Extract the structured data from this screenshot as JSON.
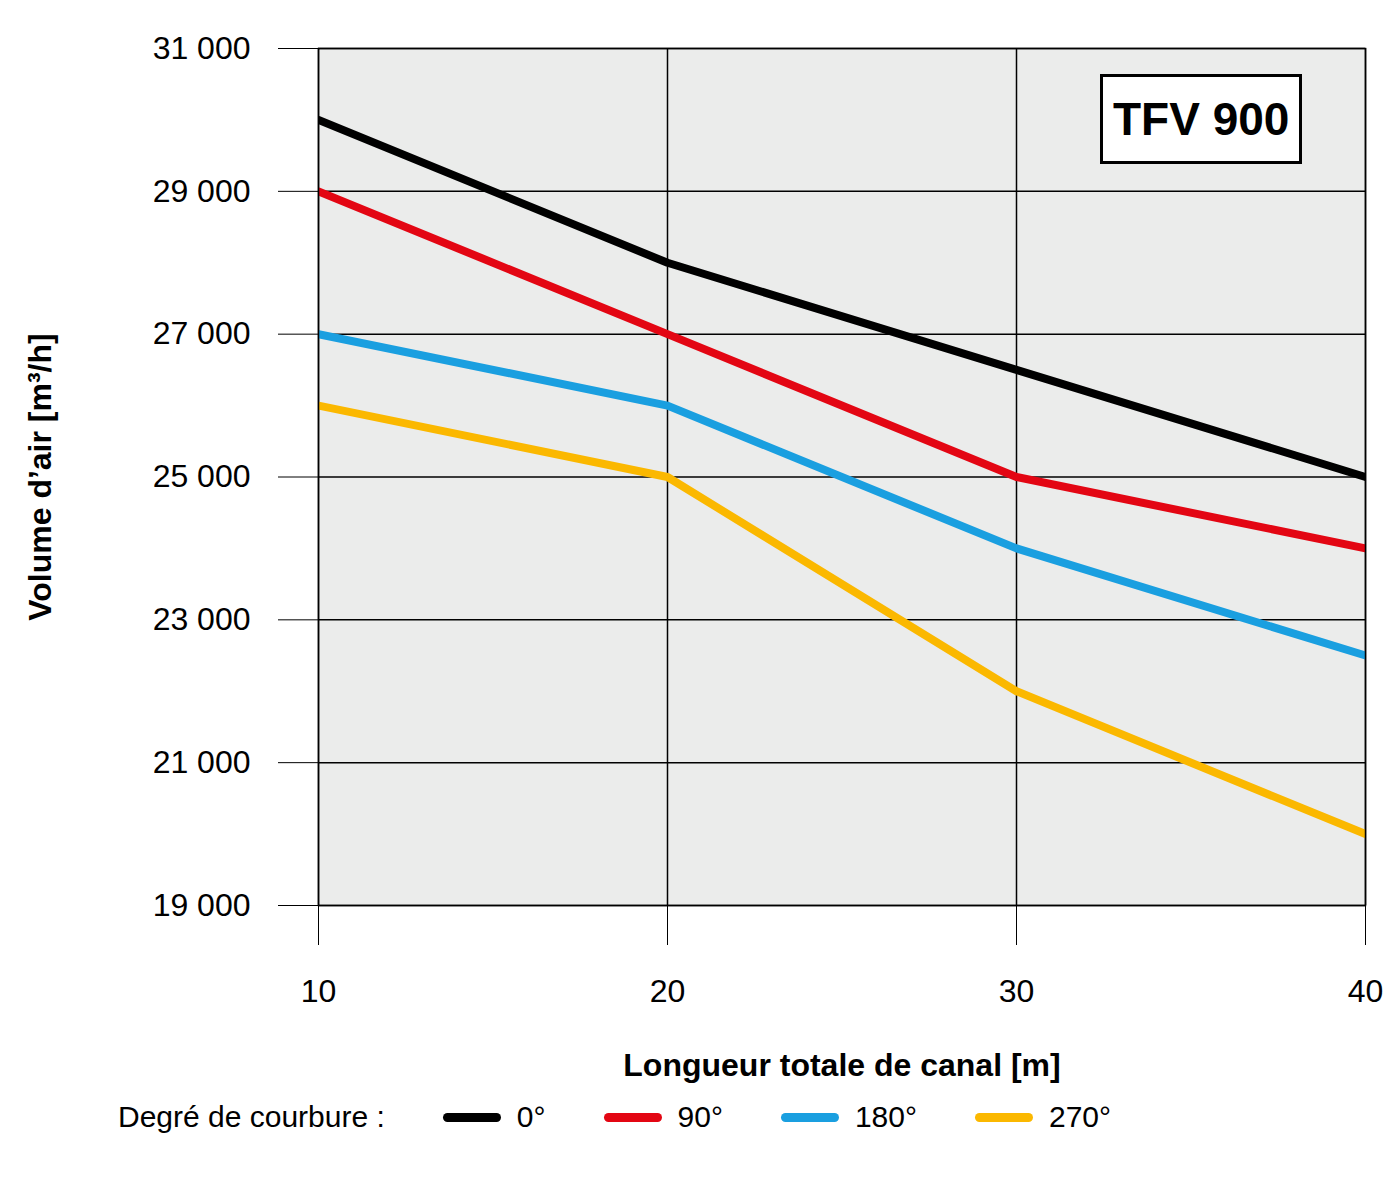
{
  "chart_data": {
    "type": "line",
    "title": "TFV 900",
    "x_label": "Longueur totale de canal [m]",
    "y_label": "Volume d’air [m³/h]",
    "legend_title": "Degré de courbure :",
    "x": [
      10,
      20,
      30,
      40
    ],
    "series": [
      {
        "name": "0°",
        "color": "#000000",
        "values": [
          30000,
          28000,
          26500,
          25000
        ]
      },
      {
        "name": "90°",
        "color": "#e30613",
        "values": [
          29000,
          27000,
          25000,
          24000
        ]
      },
      {
        "name": "180°",
        "color": "#1a9fe0",
        "values": [
          27000,
          26000,
          24000,
          22500
        ]
      },
      {
        "name": "270°",
        "color": "#fbb800",
        "values": [
          26000,
          25000,
          22000,
          20000
        ]
      }
    ],
    "xlim": [
      10,
      40
    ],
    "xticks": [
      10,
      20,
      30,
      40
    ],
    "ylim": [
      19000,
      31000
    ],
    "yticks": [
      {
        "value": 19000,
        "label": "19 000"
      },
      {
        "value": 21000,
        "label": "21 000"
      },
      {
        "value": 23000,
        "label": "23 000"
      },
      {
        "value": 25000,
        "label": "25 000"
      },
      {
        "value": 27000,
        "label": "27 000"
      },
      {
        "value": 29000,
        "label": "29 000"
      },
      {
        "value": 31000,
        "label": "31 000"
      }
    ],
    "grid": true,
    "legend": "bottom"
  }
}
